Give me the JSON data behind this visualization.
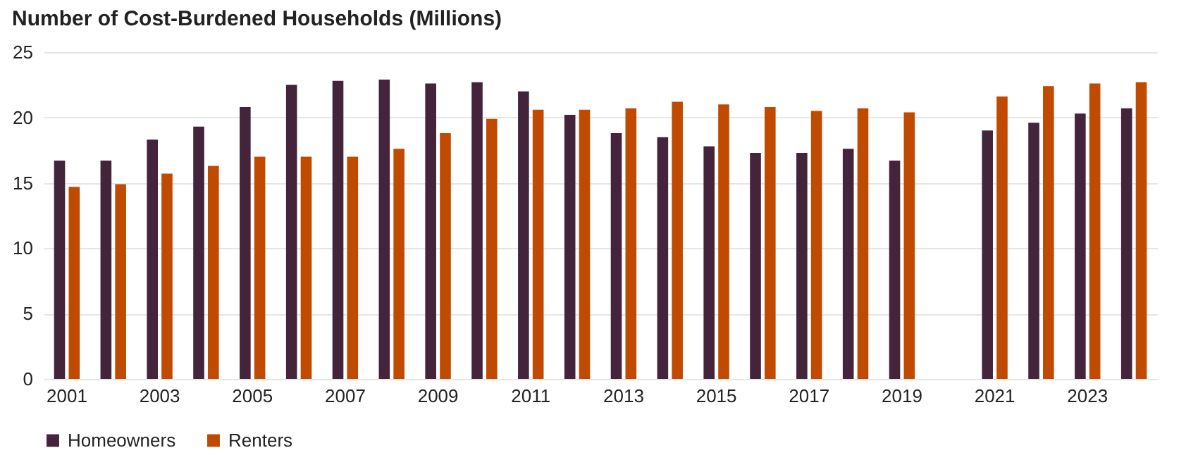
{
  "chart_data": {
    "type": "bar",
    "title": "Number of Cost-Burdened Households (Millions)",
    "categories": [
      "2001",
      null,
      "2003",
      null,
      "2005",
      null,
      "2007",
      null,
      "2009",
      null,
      "2011",
      null,
      "2013",
      null,
      "2015",
      null,
      "2017",
      null,
      "2019",
      null,
      "2021",
      null,
      "2023",
      null
    ],
    "series": [
      {
        "name": "Homeowners",
        "color": "#43243a",
        "values": [
          16.7,
          16.7,
          18.3,
          19.3,
          20.8,
          22.5,
          22.8,
          22.9,
          22.6,
          22.7,
          22.0,
          20.2,
          18.8,
          18.5,
          17.8,
          17.3,
          17.3,
          17.6,
          16.7,
          null,
          19.0,
          19.6,
          20.3,
          20.7
        ]
      },
      {
        "name": "Renters",
        "color": "#c04a00",
        "values": [
          14.7,
          14.9,
          15.7,
          16.3,
          17.0,
          17.0,
          17.0,
          17.6,
          18.8,
          19.9,
          20.6,
          20.6,
          20.7,
          21.2,
          21.0,
          20.8,
          20.5,
          20.7,
          20.4,
          null,
          21.6,
          22.4,
          22.6,
          22.7
        ]
      }
    ],
    "ylim": [
      0,
      25
    ],
    "yticks": [
      0,
      5,
      10,
      15,
      20,
      25
    ],
    "grid": "y",
    "legend": "bottom left"
  }
}
